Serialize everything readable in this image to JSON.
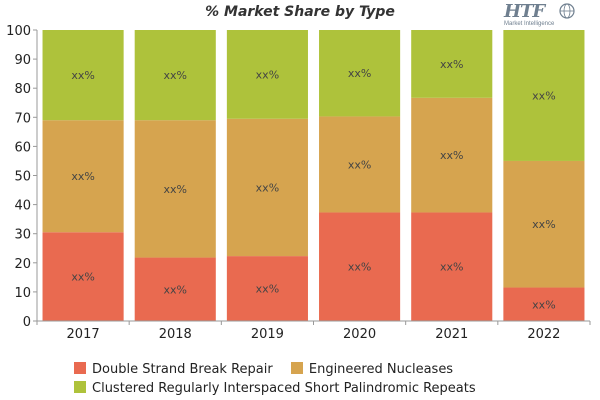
{
  "chart_data": {
    "type": "bar",
    "stacked": true,
    "title": "% Market Share by Type",
    "categories": [
      "2017",
      "2018",
      "2019",
      "2020",
      "2021",
      "2022"
    ],
    "ylim": [
      0,
      100
    ],
    "yticks": [
      0,
      10,
      20,
      30,
      40,
      50,
      60,
      70,
      80,
      90,
      100
    ],
    "grid": false,
    "legend_position": "bottom",
    "series": [
      {
        "name": "Double Strand Break Repair",
        "color": "#e96a50",
        "values": [
          30.5,
          21.8,
          22.3,
          37.3,
          37.3,
          11.5
        ],
        "labels": [
          "xx%",
          "xx%",
          "xx%",
          "xx%",
          "xx%",
          "xx%"
        ]
      },
      {
        "name": "Engineered Nucleases",
        "color": "#d6a44f",
        "values": [
          38.5,
          47.2,
          47.2,
          33.0,
          39.4,
          43.5
        ],
        "labels": [
          "xx%",
          "xx%",
          "xx%",
          "xx%",
          "xx%",
          "xx%"
        ]
      },
      {
        "name": "Clustered Regularly Interspaced Short Palindromic Repeats",
        "color": "#aec23b",
        "values": [
          31.0,
          31.0,
          30.5,
          29.7,
          23.3,
          45.0
        ],
        "labels": [
          "xx%",
          "xx%",
          "xx%",
          "xx%",
          "xx%",
          "xx%"
        ]
      }
    ]
  },
  "logo": {
    "brand": "HTF",
    "tagline": "Market Intelligence",
    "icon": "globe-icon"
  }
}
